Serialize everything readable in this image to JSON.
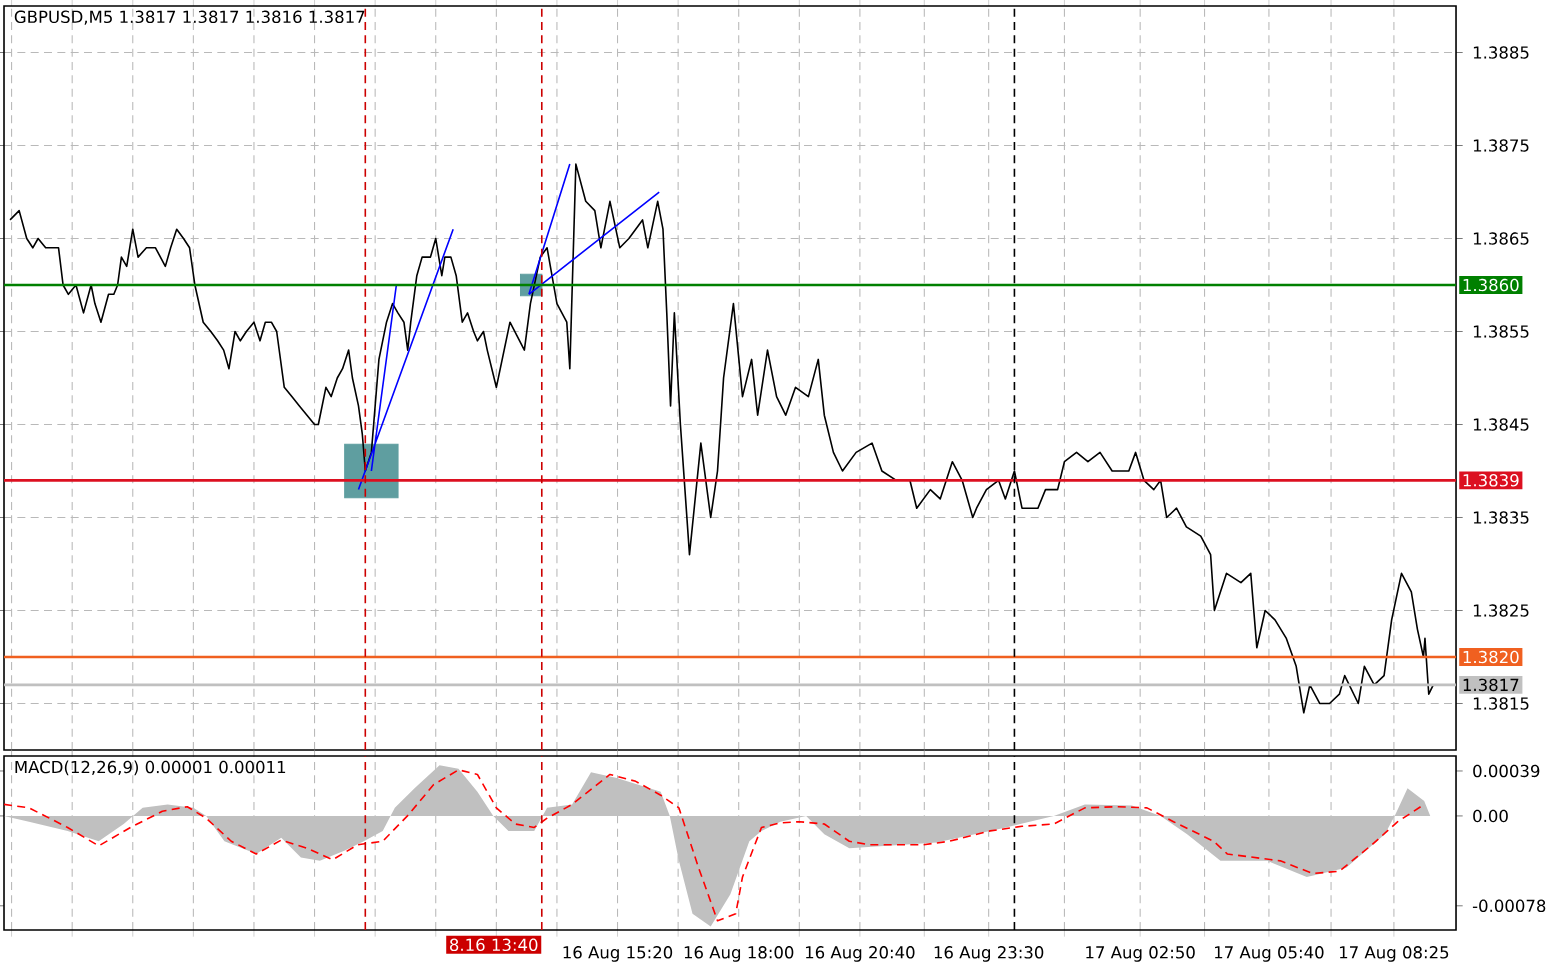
{
  "chart_data": [
    {
      "type": "line",
      "title": "GBPUSD,M5  1.3817 1.3817 1.3816 1.3817",
      "x": [
        "--08-16T01:58",
        "--08-16T02:10",
        "--08-16T02:20",
        "--08-16T02:28",
        "--08-16T02:35",
        "--08-16T02:45",
        "--08-16T02:53",
        "--08-16T03:02",
        "--08-16T03:08",
        "--08-16T03:15",
        "--08-16T03:25",
        "--08-16T03:35",
        "--08-16T03:45",
        "--08-16T03:50",
        "--08-16T03:58",
        "--08-16T04:08",
        "--08-16T04:15",
        "--08-16T04:20",
        "--08-16T04:25",
        "--08-16T04:32",
        "--08-16T04:40",
        "--08-16T04:47",
        "--08-16T04:58",
        "--08-16T05:10",
        "--08-16T05:23",
        "--08-16T05:30",
        "--08-16T05:38",
        "--08-16T05:47",
        "--08-16T05:55",
        "--08-16T06:02",
        "--08-16T06:13",
        "--08-16T06:23",
        "--08-16T06:32",
        "--08-16T06:40",
        "--08-16T06:47",
        "--08-16T06:55",
        "--08-16T07:02",
        "--08-16T07:10",
        "--08-16T07:20",
        "--08-16T07:28",
        "--08-16T07:35",
        "--08-16T07:43",
        "--08-16T07:50",
        "--08-16T08:00",
        "--08-16T08:10",
        "--08-16T08:20",
        "--08-16T08:30",
        "--08-16T08:40",
        "--08-16T08:45",
        "--08-16T08:55",
        "--08-16T09:02",
        "--08-16T09:10",
        "--08-16T09:17",
        "--08-16T09:25",
        "--08-16T09:30",
        "--08-16T09:38",
        "--08-16T09:43",
        "--08-16T09:47",
        "--08-16T09:55",
        "--08-16T10:00",
        "--08-16T10:05",
        "--08-16T10:15",
        "--08-16T10:23",
        "--08-16T10:30",
        "--08-16T10:38",
        "--08-16T10:43",
        "--08-16T10:47",
        "--08-16T10:55",
        "--08-16T11:02",
        "--08-16T11:13",
        "--08-16T11:20",
        "--08-16T11:28",
        "--08-16T11:32",
        "--08-16T11:40",
        "--08-16T11:47",
        "--08-16T11:55",
        "--08-16T12:02",
        "--08-16T12:10",
        "--08-16T12:15",
        "--08-16T12:23",
        "--08-16T12:28",
        "--08-16T12:40",
        "--08-16T12:58",
        "--08-16T13:17",
        "--08-16T13:25",
        "--08-16T13:38",
        "--08-16T13:47",
        "--08-16T14:00",
        "--08-16T14:13",
        "--08-16T14:17",
        "--08-16T14:25",
        "--08-16T14:38",
        "--08-16T14:50",
        "--08-16T14:58",
        "--08-16T15:10",
        "--08-16T15:23",
        "--08-16T15:35",
        "--08-16T15:53",
        "--08-16T16:00",
        "--08-16T16:13",
        "--08-16T16:20",
        "--08-16T16:25",
        "--08-16T16:30",
        "--08-16T16:35",
        "--08-16T16:43",
        "--08-16T16:55",
        "--08-16T17:10",
        "--08-16T17:23",
        "--08-16T17:32",
        "--08-16T17:40",
        "--08-16T17:53",
        "--08-16T18:05",
        "--08-16T18:17",
        "--08-16T18:25",
        "--08-16T18:38",
        "--08-16T18:50",
        "--08-16T19:02",
        "--08-16T19:15",
        "--08-16T19:32",
        "--08-16T19:45",
        "--08-16T19:53",
        "--08-16T20:05",
        "--08-16T20:17",
        "--08-16T20:35",
        "--08-16T20:56",
        "--08-16T21:09",
        "--08-16T21:28",
        "--08-16T21:46",
        "--08-16T21:55",
        "--08-16T22:13",
        "--08-16T22:26",
        "--08-16T22:42",
        "--08-16T22:55",
        "--08-16T23:09",
        "--08-16T23:14",
        "--08-16T23:27",
        "--08-16T23:43",
        "--08-16T23:52",
        "--08-17T00:04",
        "--08-17T00:14",
        "--08-17T00:35",
        "--08-17T00:45",
        "--08-17T01:01",
        "--08-17T01:10",
        "--08-17T01:26",
        "--08-17T01:41",
        "--08-17T01:57",
        "--08-17T02:13",
        "--08-17T02:35",
        "--08-17T02:44",
        "--08-17T02:55",
        "--08-17T03:08",
        "--08-17T03:17",
        "--08-17T03:25",
        "--08-17T03:38",
        "--08-17T03:51",
        "--08-17T04:10",
        "--08-17T04:23",
        "--08-17T04:28",
        "--08-17T04:44",
        "--08-17T05:03",
        "--08-17T05:16",
        "--08-17T05:24",
        "--08-17T05:35",
        "--08-17T05:48",
        "--08-17T06:03",
        "--08-17T06:16",
        "--08-17T06:26",
        "--08-17T06:34",
        "--08-17T06:47",
        "--08-17T07:00",
        "--08-17T07:13",
        "--08-17T07:20",
        "--08-17T07:38",
        "--08-17T07:46",
        "--08-17T07:59",
        "--08-17T08:12",
        "--08-17T08:22",
        "--08-17T08:35",
        "--08-17T08:48",
        "--08-17T08:56",
        "--08-17T09:04",
        "--08-17T09:06",
        "--08-17T09:11",
        "--08-17T09:17"
      ],
      "series": [
        {
          "type": "bubble",
          "color": "#5f9ea0",
          "marker": "square",
          "x": [
            "--08-16T09:55",
            "--08-16T13:26"
          ],
          "values": [
            1.384,
            1.386
          ],
          "sizes": [
            1,
            0.16
          ]
        },
        {
          "color": "#000000",
          "values": [
            1.3867,
            1.3868,
            1.3865,
            1.3864,
            1.3865,
            1.3864,
            1.3864,
            1.3864,
            1.386,
            1.3859,
            1.386,
            1.3857,
            1.386,
            1.3858,
            1.3856,
            1.3859,
            1.3859,
            1.386,
            1.3863,
            1.3862,
            1.3866,
            1.3863,
            1.3864,
            1.3864,
            1.3862,
            1.3864,
            1.3866,
            1.3865,
            1.3864,
            1.386,
            1.3856,
            1.3855,
            1.3854,
            1.3853,
            1.3851,
            1.3855,
            1.3854,
            1.3855,
            1.3856,
            1.3854,
            1.3856,
            1.3856,
            1.3855,
            1.3849,
            1.3848,
            1.3847,
            1.3846,
            1.3845,
            1.3845,
            1.3849,
            1.3848,
            1.385,
            1.3851,
            1.3853,
            1.385,
            1.3847,
            1.3844,
            1.384,
            1.3842,
            1.3847,
            1.3852,
            1.3856,
            1.3858,
            1.3857,
            1.3856,
            1.3853,
            1.3856,
            1.3861,
            1.3863,
            1.3863,
            1.3865,
            1.3861,
            1.3863,
            1.3863,
            1.3861,
            1.3856,
            1.3857,
            1.3855,
            1.3854,
            1.3855,
            1.3853,
            1.3849,
            1.3856,
            1.3853,
            1.3858,
            1.3863,
            1.3864,
            1.3858,
            1.3856,
            1.3851,
            1.3873,
            1.3869,
            1.3868,
            1.3864,
            1.3869,
            1.3864,
            1.3865,
            1.3867,
            1.3864,
            1.3869,
            1.3866,
            1.3857,
            1.3847,
            1.3857,
            1.3845,
            1.3831,
            1.3843,
            1.3835,
            1.384,
            1.385,
            1.3858,
            1.3848,
            1.3852,
            1.3846,
            1.3853,
            1.3848,
            1.3846,
            1.3849,
            1.3848,
            1.3852,
            1.3846,
            1.3842,
            1.384,
            1.3842,
            1.3843,
            1.384,
            1.3839,
            1.3839,
            1.3836,
            1.3838,
            1.3837,
            1.3841,
            1.3839,
            1.3835,
            1.3836,
            1.3838,
            1.3839,
            1.3837,
            1.384,
            1.3836,
            1.3836,
            1.3838,
            1.3838,
            1.3841,
            1.3842,
            1.3841,
            1.3842,
            1.384,
            1.384,
            1.3842,
            1.3839,
            1.3838,
            1.3839,
            1.3835,
            1.3836,
            1.3834,
            1.3833,
            1.3831,
            1.3825,
            1.3829,
            1.3828,
            1.3829,
            1.3821,
            1.3825,
            1.3824,
            1.3822,
            1.3819,
            1.3814,
            1.3817,
            1.3815,
            1.3815,
            1.3816,
            1.3818,
            1.3815,
            1.3819,
            1.3817,
            1.3818,
            1.3824,
            1.3829,
            1.3827,
            1.3823,
            1.382,
            1.3822,
            1.3816,
            1.3817
          ]
        },
        {
          "color": "#0000ff",
          "x": [
            "--08-16T09:38",
            "--08-16T11:43",
            null,
            "--08-16T09:55",
            "--08-16T10:28",
            null,
            "--08-16T13:23",
            "--08-16T14:17",
            null,
            "--08-16T13:23",
            "--08-16T16:15"
          ],
          "values": [
            1.3838,
            1.3866,
            null,
            1.384,
            1.386,
            null,
            1.3859,
            1.3873,
            null,
            1.3859,
            1.387
          ]
        }
      ],
      "xlim": [
        "--08-16T01:50",
        "--08-17T09:47"
      ],
      "xticks": [
        {
          "value": "--08-16T02:00",
          "label": null
        },
        {
          "value": "--08-16T03:20",
          "label": null
        },
        {
          "value": "--08-16T04:40",
          "label": null
        },
        {
          "value": "--08-16T06:00",
          "label": null
        },
        {
          "value": "--08-16T07:20",
          "label": null
        },
        {
          "value": "--08-16T08:40",
          "label": null
        },
        {
          "value": "--08-16T10:00",
          "label": null
        },
        {
          "value": "--08-16T11:20",
          "label": null
        },
        {
          "value": "--08-16T12:40",
          "label": null
        },
        {
          "value": "--08-16T14:00",
          "label": null
        },
        {
          "value": "--08-16T15:20",
          "label": null
        },
        {
          "value": "--08-16T16:40",
          "label": null
        },
        {
          "value": "--08-16T18:00",
          "label": null
        },
        {
          "value": "--08-16T19:20",
          "label": null
        },
        {
          "value": "--08-16T20:40",
          "label": null
        },
        {
          "value": "--08-16T22:05",
          "label": null
        },
        {
          "value": "--08-16T23:30",
          "label": null
        },
        {
          "value": "--08-17T01:10",
          "label": null
        },
        {
          "value": "--08-17T02:50",
          "label": null
        },
        {
          "value": "--08-17T04:15",
          "label": null
        },
        {
          "value": "--08-17T05:40",
          "label": null
        },
        {
          "value": "--08-17T07:02",
          "label": null
        },
        {
          "value": "--08-17T08:25",
          "label": null
        }
      ],
      "ylim": [
        1.381,
        1.389
      ],
      "yticks": [
        1.3815,
        1.3825,
        1.3835,
        1.3845,
        1.3855,
        1.3865,
        1.3875,
        1.3885
      ],
      "ref_lines": [
        {
          "axis": "y",
          "value": 1.386,
          "label": "1.3860",
          "color": "#008000"
        },
        {
          "axis": "y",
          "value": 1.3839,
          "label": "1.3839",
          "color": "#dc1020"
        },
        {
          "axis": "y",
          "value": 1.382,
          "label": "1.3820",
          "color": "#f06020"
        },
        {
          "axis": "y",
          "value": 1.3817,
          "label": "1.3817",
          "color": "#c0c0c0"
        },
        {
          "axis": "x",
          "value": "--08-16T09:47",
          "color": "#cc0000",
          "line_style": "dashed"
        },
        {
          "axis": "x",
          "value": "--08-16T13:40",
          "color": "#cc0000",
          "line_style": "dashed"
        },
        {
          "axis": "x",
          "value": "--08-17T00:04",
          "color": "#000000",
          "line_style": "dashed"
        }
      ],
      "grid": true,
      "tick_labels": "y"
    },
    {
      "type": "area",
      "title": "MACD(12,26,9) 0.00001 0.00011",
      "series": [
        {
          "color": "#c0c0c0",
          "x": [
            "--08-16T01:50",
            "--08-16T02:23",
            "--08-16T03:14",
            "--08-16T03:55",
            "--08-16T04:28",
            "--08-16T04:53",
            "--08-16T05:26",
            "--08-16T06:00",
            "--08-16T06:17",
            "--08-16T06:41",
            "--08-16T07:23",
            "--08-16T07:56",
            "--08-16T08:22",
            "--08-16T08:47",
            "--08-16T09:20",
            "--08-16T09:45",
            "--08-16T10:10",
            "--08-16T10:26",
            "--08-16T10:52",
            "--08-16T11:25",
            "--08-16T11:50",
            "--08-16T12:15",
            "--08-16T12:36",
            "--08-16T12:56",
            "--08-16T13:30",
            "--08-16T13:47",
            "--08-16T14:20",
            "--08-16T14:45",
            "--08-16T15:19",
            "--08-16T16:17",
            "--08-16T16:29",
            "--08-16T16:41",
            "--08-16T16:59",
            "--08-16T17:23",
            "--08-16T17:49",
            "--08-16T18:14",
            "--08-16T18:30",
            "--08-16T18:55",
            "--08-16T19:29",
            "--08-16T19:53",
            "--08-16T20:26",
            "--08-16T21:37",
            "--08-16T22:21",
            "--08-16T23:53",
            "--08-17T00:56",
            "--08-17T01:37",
            "--08-17T02:39",
            "--08-17T03:17",
            "--08-17T03:52",
            "--08-17T04:36",
            "--08-17T05:38",
            "--08-17T06:30",
            "--08-17T07:22",
            "--08-17T08:13",
            "--08-17T08:26",
            "--08-17T08:43",
            "--08-17T09:05",
            "--08-17T09:13"
          ],
          "values": [
            0,
            -5e-05,
            -0.00013,
            -0.00022,
            -7e-05,
            7e-05,
            0.0001,
            7e-05,
            0,
            -0.00022,
            -0.00033,
            -0.00019,
            -0.00036,
            -0.00039,
            -0.0003,
            -0.00022,
            -0.00013,
            7e-05,
            0.00024,
            0.00044,
            0.00041,
            0.00021,
            0,
            -0.00013,
            -0.00013,
            7e-05,
            0.0001,
            0.00038,
            0.00033,
            0.00021,
            0,
            -0.00039,
            -0.00085,
            -0.00096,
            -0.00068,
            -0.00022,
            -0.00013,
            -5e-05,
            0,
            -0.00016,
            -0.00028,
            -0.00025,
            -0.00023,
            -0.0001,
            0,
            0.0001,
            9e-05,
            0,
            -0.00016,
            -0.00039,
            -0.00039,
            -0.00053,
            -0.00045,
            -0.00016,
            0,
            0.00024,
            0.00013,
            0
          ]
        },
        {
          "type": "line",
          "color": "#ff0000",
          "line_style": "dashed",
          "x": [
            "--08-16T01:50",
            "--08-16T02:23",
            "--08-16T03:14",
            "--08-16T03:55",
            "--08-16T04:37",
            "--08-16T05:19",
            "--08-16T05:52",
            "--08-16T06:17",
            "--08-16T06:50",
            "--08-16T07:23",
            "--08-16T07:56",
            "--08-16T08:30",
            "--08-16T09:04",
            "--08-16T09:37",
            "--08-16T10:10",
            "--08-16T10:44",
            "--08-16T11:17",
            "--08-16T11:50",
            "--08-16T12:15",
            "--08-16T12:40",
            "--08-16T13:05",
            "--08-16T13:30",
            "--08-16T13:47",
            "--08-16T14:20",
            "--08-16T15:10",
            "--08-16T15:44",
            "--08-16T16:17",
            "--08-16T16:41",
            "--08-16T17:07",
            "--08-16T17:32",
            "--08-16T17:56",
            "--08-16T18:05",
            "--08-16T18:30",
            "--08-16T18:55",
            "--08-16T19:20",
            "--08-16T19:53",
            "--08-16T20:26",
            "--08-16T20:52",
            "--08-16T22:04",
            "--08-16T22:38",
            "--08-16T23:32",
            "--08-17T00:14",
            "--08-17T00:56",
            "--08-17T01:37",
            "--08-17T02:19",
            "--08-17T02:59",
            "--08-17T03:34",
            "--08-17T04:27",
            "--08-17T04:45",
            "--08-17T05:55",
            "--08-17T06:38",
            "--08-17T07:13",
            "--08-17T07:56",
            "--08-17T08:30",
            "--08-17T09:05"
          ],
          "values": [
            0.0001,
            7e-05,
            -0.0001,
            -0.00026,
            -0.0001,
            4e-05,
            8e-05,
            -2e-05,
            -0.00022,
            -0.00033,
            -0.00021,
            -0.00028,
            -0.00038,
            -0.00025,
            -0.00022,
            1e-05,
            0.00027,
            0.0004,
            0.00036,
            7e-05,
            -7e-05,
            -0.0001,
            -2e-05,
            0.0001,
            0.00036,
            0.0003,
            0.00018,
            7e-05,
            -0.00045,
            -0.00091,
            -0.00085,
            -0.00053,
            -0.0001,
            -6e-05,
            -5e-05,
            -7e-05,
            -0.00022,
            -0.00025,
            -0.00025,
            -0.00022,
            -0.00013,
            -9e-05,
            -7e-05,
            7e-05,
            8e-05,
            7e-05,
            -5e-05,
            -0.00022,
            -0.00033,
            -0.00039,
            -0.0005,
            -0.00048,
            -0.00025,
            -5e-05,
            0.0001
          ]
        }
      ],
      "xlim": [
        "--08-16T01:50",
        "--08-17T09:47"
      ],
      "xticks": [
        {
          "value": "--08-16T02:00",
          "label": null
        },
        {
          "value": "--08-16T03:20",
          "label": null
        },
        {
          "value": "--08-16T04:40",
          "label": null
        },
        {
          "value": "--08-16T06:00",
          "label": null
        },
        {
          "value": "--08-16T07:20",
          "label": null
        },
        {
          "value": "--08-16T08:40",
          "label": null
        },
        {
          "value": "--08-16T10:00",
          "label": null
        },
        {
          "value": "--08-16T11:20",
          "label": null
        },
        {
          "value": "--08-16T12:40",
          "label": null
        },
        {
          "value": "--08-16T14:00",
          "label": null
        },
        {
          "value": "--08-16T15:20",
          "label": "16 Aug 15:20"
        },
        {
          "value": "--08-16T16:40",
          "label": null
        },
        {
          "value": "--08-16T18:00",
          "label": "16 Aug 18:00"
        },
        {
          "value": "--08-16T19:20",
          "label": null
        },
        {
          "value": "--08-16T20:40",
          "label": "16 Aug 20:40"
        },
        {
          "value": "--08-16T22:05",
          "label": null
        },
        {
          "value": "--08-16T23:30",
          "label": "16 Aug 23:30"
        },
        {
          "value": "--08-17T01:10",
          "label": null
        },
        {
          "value": "--08-17T02:50",
          "label": "17 Aug 02:50"
        },
        {
          "value": "--08-17T04:15",
          "label": null
        },
        {
          "value": "--08-17T05:40",
          "label": "17 Aug 05:40"
        },
        {
          "value": "--08-17T07:02",
          "label": null
        },
        {
          "value": "--08-17T08:25",
          "label": "17 Aug 08:25"
        }
      ],
      "ylim": [
        -0.00099,
        0.00052
      ],
      "yticks": [
        {
          "value": -0.00078,
          "label": "-0.00078"
        },
        {
          "value": 0,
          "label": "0.00"
        },
        {
          "value": 0.00039,
          "label": "0.00039"
        }
      ],
      "ref_lines": [
        {
          "axis": "x",
          "value": "--08-16T09:47",
          "color": "#cc0000",
          "line_style": "dashed"
        },
        {
          "axis": "x",
          "value": "--08-16T13:40",
          "color": "#cc0000",
          "line_style": "dashed",
          "label": "8.16 13:40"
        },
        {
          "axis": "x",
          "value": "--08-17T00:04",
          "color": "#000000",
          "line_style": "dashed"
        }
      ],
      "grid": "x"
    }
  ]
}
